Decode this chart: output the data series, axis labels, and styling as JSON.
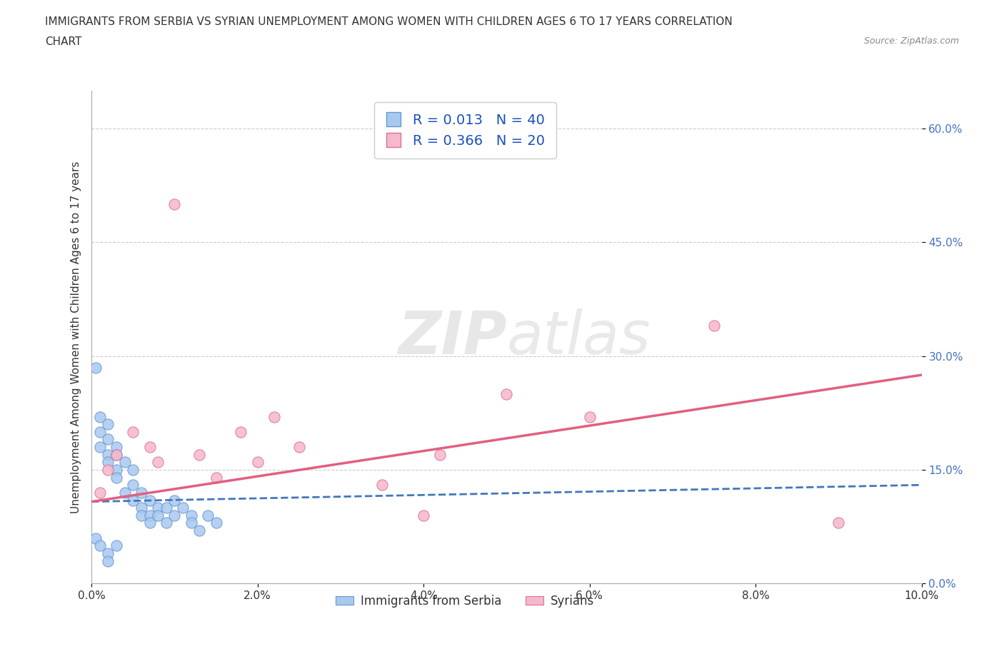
{
  "title_line1": "IMMIGRANTS FROM SERBIA VS SYRIAN UNEMPLOYMENT AMONG WOMEN WITH CHILDREN AGES 6 TO 17 YEARS CORRELATION",
  "title_line2": "CHART",
  "source": "Source: ZipAtlas.com",
  "ylabel": "Unemployment Among Women with Children Ages 6 to 17 years",
  "xlim": [
    0.0,
    0.1
  ],
  "ylim": [
    0.0,
    0.65
  ],
  "xticks": [
    0.0,
    0.02,
    0.04,
    0.06,
    0.08,
    0.1
  ],
  "xtick_labels": [
    "0.0%",
    "2.0%",
    "4.0%",
    "6.0%",
    "8.0%",
    "10.0%"
  ],
  "ytick_positions": [
    0.0,
    0.15,
    0.3,
    0.45,
    0.6
  ],
  "ytick_labels": [
    "0.0%",
    "15.0%",
    "30.0%",
    "45.0%",
    "60.0%"
  ],
  "serbia_R": "0.013",
  "serbia_N": "40",
  "syria_R": "0.366",
  "syria_N": "20",
  "serbia_color": "#a8c8f0",
  "serbia_edge_color": "#6699cc",
  "syria_color": "#f5b8cc",
  "syria_edge_color": "#e07090",
  "serbia_line_color": "#4477bb",
  "syria_line_color": "#e06080",
  "legend_label_serbia": "Immigrants from Serbia",
  "legend_label_syria": "Syrians",
  "serbia_x": [
    0.0005,
    0.001,
    0.001,
    0.001,
    0.002,
    0.002,
    0.002,
    0.002,
    0.003,
    0.003,
    0.003,
    0.003,
    0.004,
    0.004,
    0.005,
    0.005,
    0.005,
    0.006,
    0.006,
    0.006,
    0.007,
    0.007,
    0.007,
    0.008,
    0.008,
    0.009,
    0.009,
    0.01,
    0.01,
    0.011,
    0.012,
    0.012,
    0.013,
    0.014,
    0.015,
    0.0005,
    0.001,
    0.002,
    0.002,
    0.003
  ],
  "serbia_y": [
    0.285,
    0.22,
    0.18,
    0.2,
    0.19,
    0.21,
    0.17,
    0.16,
    0.18,
    0.17,
    0.15,
    0.14,
    0.16,
    0.12,
    0.15,
    0.13,
    0.11,
    0.12,
    0.1,
    0.09,
    0.11,
    0.09,
    0.08,
    0.1,
    0.09,
    0.1,
    0.08,
    0.09,
    0.11,
    0.1,
    0.09,
    0.08,
    0.07,
    0.09,
    0.08,
    0.06,
    0.05,
    0.04,
    0.03,
    0.05
  ],
  "syria_x": [
    0.001,
    0.002,
    0.003,
    0.005,
    0.007,
    0.008,
    0.01,
    0.013,
    0.015,
    0.018,
    0.02,
    0.022,
    0.025,
    0.035,
    0.04,
    0.042,
    0.05,
    0.06,
    0.075,
    0.09
  ],
  "syria_y": [
    0.12,
    0.15,
    0.17,
    0.2,
    0.18,
    0.16,
    0.5,
    0.17,
    0.14,
    0.2,
    0.16,
    0.22,
    0.18,
    0.13,
    0.09,
    0.17,
    0.25,
    0.22,
    0.34,
    0.08
  ],
  "serbia_trendline": [
    0.108,
    0.13
  ],
  "syria_trendline": [
    0.108,
    0.275
  ]
}
